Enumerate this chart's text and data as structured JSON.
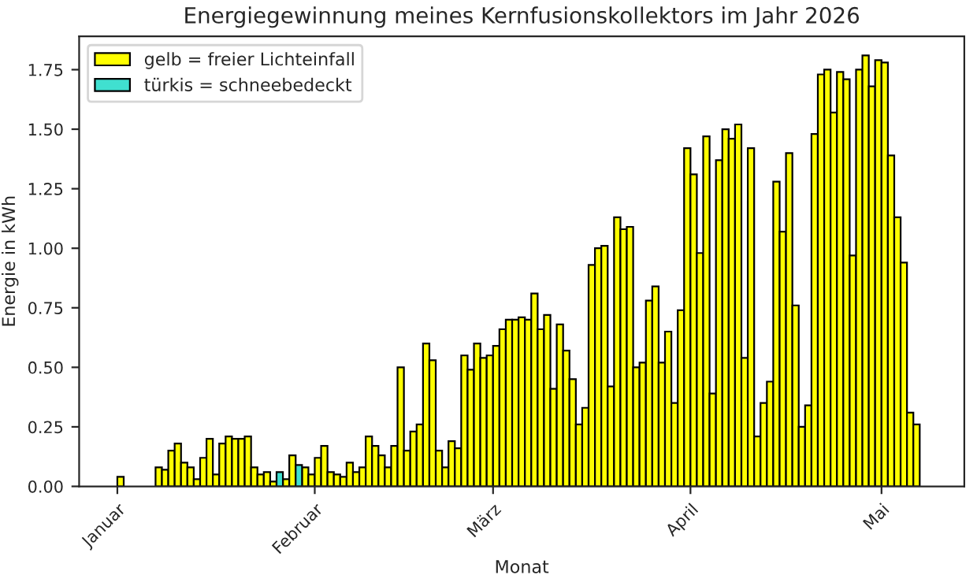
{
  "chart_data": {
    "type": "bar",
    "title": "Energiegewinnung meines Kernfusionskollektors im Jahr 2026",
    "xlabel": "Monat",
    "ylabel": "Energie in kWh",
    "x": [
      "2026-01-01",
      "2026-01-02",
      "2026-01-03",
      "2026-01-04",
      "2026-01-05",
      "2026-01-06",
      "2026-01-07",
      "2026-01-08",
      "2026-01-09",
      "2026-01-10",
      "2026-01-11",
      "2026-01-12",
      "2026-01-13",
      "2026-01-14",
      "2026-01-15",
      "2026-01-16",
      "2026-01-17",
      "2026-01-18",
      "2026-01-19",
      "2026-01-20",
      "2026-01-21",
      "2026-01-22",
      "2026-01-23",
      "2026-01-24",
      "2026-01-25",
      "2026-01-26",
      "2026-01-27",
      "2026-01-28",
      "2026-01-29",
      "2026-01-30",
      "2026-01-31",
      "2026-02-01",
      "2026-02-02",
      "2026-02-03",
      "2026-02-04",
      "2026-02-05",
      "2026-02-06",
      "2026-02-07",
      "2026-02-08",
      "2026-02-09",
      "2026-02-10",
      "2026-02-11",
      "2026-02-12",
      "2026-02-13",
      "2026-02-14",
      "2026-02-15",
      "2026-02-16",
      "2026-02-17",
      "2026-02-18",
      "2026-02-19",
      "2026-02-20",
      "2026-02-21",
      "2026-02-22",
      "2026-02-23",
      "2026-02-24",
      "2026-02-25",
      "2026-02-26",
      "2026-02-27",
      "2026-02-28",
      "2026-03-01",
      "2026-03-02",
      "2026-03-03",
      "2026-03-04",
      "2026-03-05",
      "2026-03-06",
      "2026-03-07",
      "2026-03-08",
      "2026-03-09",
      "2026-03-10",
      "2026-03-11",
      "2026-03-12",
      "2026-03-13",
      "2026-03-14",
      "2026-03-15",
      "2026-03-16",
      "2026-03-17",
      "2026-03-18",
      "2026-03-19",
      "2026-03-20",
      "2026-03-21",
      "2026-03-22",
      "2026-03-23",
      "2026-03-24",
      "2026-03-25",
      "2026-03-26",
      "2026-03-27",
      "2026-03-28",
      "2026-03-29",
      "2026-03-30",
      "2026-03-31",
      "2026-04-01",
      "2026-04-02",
      "2026-04-03",
      "2026-04-04",
      "2026-04-05",
      "2026-04-06",
      "2026-04-07",
      "2026-04-08",
      "2026-04-09",
      "2026-04-10",
      "2026-04-11",
      "2026-04-12",
      "2026-04-13",
      "2026-04-14",
      "2026-04-15",
      "2026-04-16",
      "2026-04-17",
      "2026-04-18",
      "2026-04-19",
      "2026-04-20",
      "2026-04-21",
      "2026-04-22",
      "2026-04-23",
      "2026-04-24",
      "2026-04-25",
      "2026-04-26",
      "2026-04-27",
      "2026-04-28",
      "2026-04-29",
      "2026-04-30",
      "2026-05-01",
      "2026-05-02",
      "2026-05-03",
      "2026-05-04",
      "2026-05-05",
      "2026-05-06"
    ],
    "series": [
      {
        "name": "gelb = freier Lichteinfall",
        "color": "#ffff00",
        "values": [
          0.04,
          null,
          null,
          null,
          null,
          null,
          0.08,
          0.07,
          0.15,
          0.18,
          0.1,
          0.08,
          0.03,
          0.12,
          0.2,
          0.05,
          0.18,
          0.21,
          0.2,
          0.2,
          0.21,
          0.08,
          0.05,
          0.06,
          0.02,
          null,
          0.03,
          0.13,
          null,
          0.08,
          0.05,
          0.12,
          0.17,
          0.06,
          0.05,
          0.04,
          0.1,
          0.06,
          0.08,
          0.21,
          0.17,
          0.13,
          0.08,
          0.17,
          0.5,
          0.15,
          0.23,
          0.26,
          0.6,
          0.53,
          0.15,
          0.08,
          0.19,
          0.16,
          0.55,
          0.49,
          0.6,
          0.54,
          0.55,
          0.59,
          0.66,
          0.7,
          0.7,
          0.71,
          0.7,
          0.81,
          0.66,
          0.72,
          0.41,
          0.68,
          0.57,
          0.45,
          0.26,
          0.33,
          0.93,
          1.0,
          1.01,
          0.42,
          1.13,
          1.08,
          1.09,
          0.5,
          0.52,
          0.78,
          0.84,
          0.52,
          0.65,
          0.35,
          0.74,
          1.42,
          1.31,
          0.98,
          1.47,
          0.39,
          1.37,
          1.5,
          1.46,
          1.52,
          0.54,
          1.42,
          0.21,
          0.35,
          0.44,
          1.28,
          1.07,
          1.4,
          0.76,
          0.25,
          0.34,
          1.48,
          1.73,
          1.75,
          1.57,
          1.74,
          1.71,
          0.97,
          1.75,
          1.81,
          1.68,
          1.79,
          1.78,
          1.39,
          1.13,
          0.94,
          0.31,
          0.26
        ]
      },
      {
        "name": "türkis = schneebedeckt",
        "color": "#40e0d0",
        "x": [
          "2026-01-26",
          "2026-01-29"
        ],
        "values": [
          0.06,
          0.09
        ]
      }
    ],
    "xlim": [
      "2025-12-26",
      "2026-05-14"
    ],
    "xticks": [
      {
        "value": "2026-01-01",
        "label": "Januar"
      },
      {
        "value": "2026-02-01",
        "label": "Februar"
      },
      {
        "value": "2026-03-01",
        "label": "März"
      },
      {
        "value": "2026-04-01",
        "label": "April"
      },
      {
        "value": "2026-05-01",
        "label": "Mai"
      }
    ],
    "ylim": [
      0,
      1.89
    ],
    "yticks": [
      {
        "value": 0,
        "label": "0.00"
      },
      {
        "value": 0.25,
        "label": "0.25"
      },
      {
        "value": 0.5,
        "label": "0.50"
      },
      {
        "value": 0.75,
        "label": "0.75"
      },
      {
        "value": 1,
        "label": "1.00"
      },
      {
        "value": 1.25,
        "label": "1.25"
      },
      {
        "value": 1.5,
        "label": "1.50"
      },
      {
        "value": 1.75,
        "label": "1.75"
      }
    ],
    "legend": "top left",
    "grid": false
  }
}
